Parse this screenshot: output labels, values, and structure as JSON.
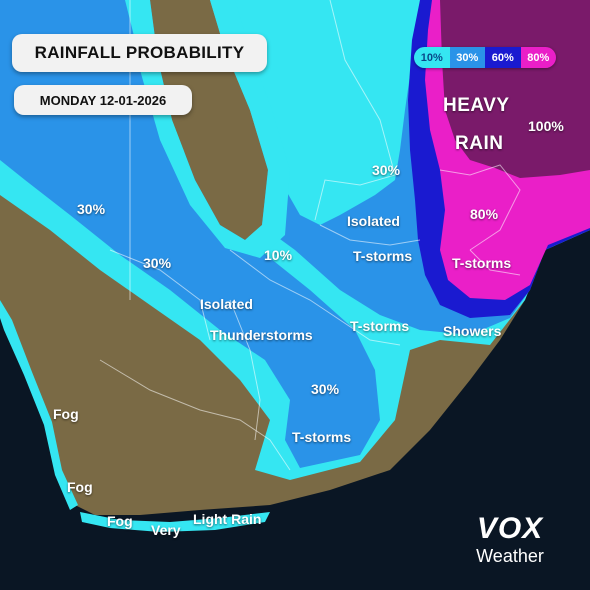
{
  "header": {
    "title": "RAINFALL PROBABILITY",
    "date": "MONDAY 12-01-2026"
  },
  "legend": {
    "items": [
      {
        "label": "10%",
        "color": "#35e6f2",
        "text_color": "#0a4a8a"
      },
      {
        "label": "30%",
        "color": "#2a93e8",
        "text_color": "#ffffff"
      },
      {
        "label": "60%",
        "color": "#1a1ad0",
        "text_color": "#ffffff"
      },
      {
        "label": "80%",
        "color": "#ea1fc8",
        "text_color": "#ffffff"
      }
    ]
  },
  "zone_colors": {
    "ocean": "#0a1624",
    "land": "#7a6a45",
    "p10": "#35e6f2",
    "p30": "#2a93e8",
    "p60": "#1a1ad0",
    "p80": "#ea1fc8",
    "p100": "#7a1a6a"
  },
  "labels": {
    "heavy_rain_1": "HEAVY",
    "heavy_rain_2": "RAIN",
    "pct_100": "100%",
    "pct_80": "80%",
    "tstorms_ne": "T-storms",
    "pct_30_north": "30%",
    "isolated_north": "Isolated",
    "tstorms_north": "T-storms",
    "pct_30_west": "30%",
    "pct_30_mid_west": "30%",
    "pct_10_center": "10%",
    "isolated_center": "Isolated",
    "thunderstorms_center": "Thunderstorms",
    "tstorms_east": "T-storms",
    "showers": "Showers",
    "pct_30_south": "30%",
    "tstorms_south": "T-storms",
    "fog_1": "Fog",
    "fog_2": "Fog",
    "fog_3": "Fog",
    "very": "Very",
    "light_rain": "Light Rain"
  },
  "brand": {
    "mark": "VOX",
    "word": "Weather"
  }
}
